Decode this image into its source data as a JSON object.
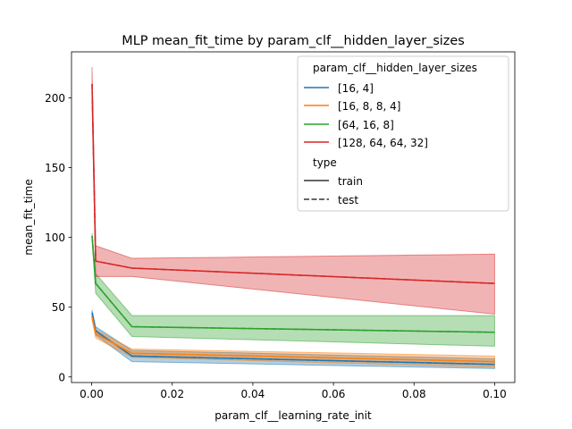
{
  "chart_data": {
    "type": "line",
    "title": "MLP mean_fit_time by param_clf__hidden_layer_sizes",
    "xlabel": "param_clf__learning_rate_init",
    "ylabel": "mean_fit_time",
    "xlim": [
      -0.005,
      0.105
    ],
    "ylim": [
      -4,
      233
    ],
    "xticks": [
      0.0,
      0.02,
      0.04,
      0.06,
      0.08,
      0.1
    ],
    "xtick_labels": [
      "0.00",
      "0.02",
      "0.04",
      "0.06",
      "0.08",
      "0.10"
    ],
    "yticks": [
      0,
      50,
      100,
      150,
      200
    ],
    "ytick_labels": [
      "0",
      "50",
      "100",
      "150",
      "200"
    ],
    "grid": false,
    "x": [
      0.0001,
      0.001,
      0.01,
      0.1
    ],
    "series": [
      {
        "name": "[16, 4]",
        "color": "#1f77b4",
        "train": [
          46,
          33,
          15,
          9
        ],
        "test": [
          46,
          33,
          15,
          9
        ],
        "ci_low": [
          44,
          30,
          11,
          6
        ],
        "ci_high": [
          48,
          36,
          19,
          13
        ]
      },
      {
        "name": "[16, 8, 8, 4]",
        "color": "#ff7f0e",
        "train": [
          43,
          31,
          17,
          11
        ],
        "test": [
          43,
          31,
          17,
          11
        ],
        "ci_low": [
          41,
          28,
          14,
          7
        ],
        "ci_high": [
          45,
          34,
          20,
          15
        ]
      },
      {
        "name": "[64, 16, 8]",
        "color": "#2ca02c",
        "train": [
          101,
          67,
          36,
          32
        ],
        "test": [
          101,
          67,
          36,
          32
        ],
        "ci_low": [
          99,
          60,
          29,
          22
        ],
        "ci_high": [
          103,
          74,
          44,
          44
        ]
      },
      {
        "name": "[128, 64, 64, 32]",
        "color": "#d62728",
        "train": [
          210,
          83,
          78,
          67
        ],
        "test": [
          210,
          83,
          78,
          67
        ],
        "ci_low": [
          198,
          72,
          72,
          45
        ],
        "ci_high": [
          222,
          94,
          85,
          88
        ]
      }
    ],
    "legend": {
      "placement": "top-right",
      "hue_title": "param_clf__hidden_layer_sizes",
      "style_title": "type",
      "styles": [
        {
          "label": "train",
          "dash": "solid"
        },
        {
          "label": "test",
          "dash": "dashed"
        }
      ]
    }
  }
}
